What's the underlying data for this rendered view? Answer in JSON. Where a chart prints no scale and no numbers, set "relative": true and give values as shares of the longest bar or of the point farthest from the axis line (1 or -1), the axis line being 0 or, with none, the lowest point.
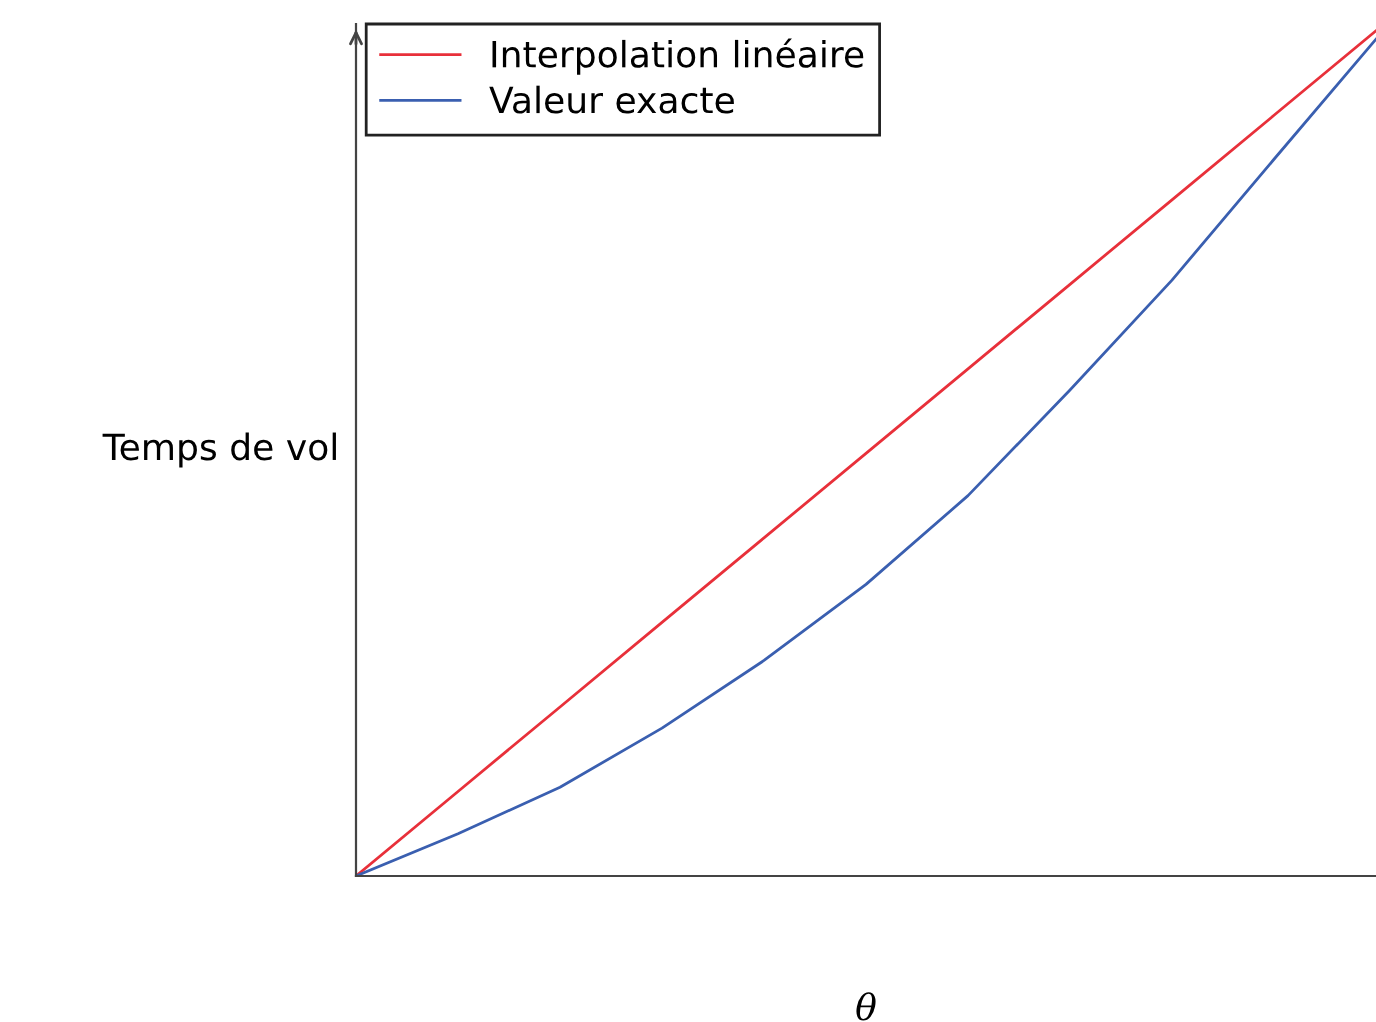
{
  "chart_data": {
    "type": "line",
    "relative": true,
    "xlabel": "θ",
    "ylabel": "Temps de vol",
    "legend": "top left",
    "tick_labels": false,
    "categories": [
      null,
      null,
      null,
      null,
      null,
      null,
      null,
      null,
      null,
      null,
      null
    ],
    "series": [
      {
        "name": "Interpolation linéaire",
        "color": "#e8303a",
        "values": [
          0,
          0.1,
          0.2,
          0.3,
          0.4,
          0.5,
          0.6,
          0.7,
          0.8,
          0.9,
          1
        ]
      },
      {
        "name": "Valeur exacte",
        "color": "#3a5fb0",
        "values": [
          0,
          0.05,
          0.105,
          0.175,
          0.255,
          0.345,
          0.45,
          0.575,
          0.705,
          0.848,
          0.99
        ]
      }
    ]
  }
}
